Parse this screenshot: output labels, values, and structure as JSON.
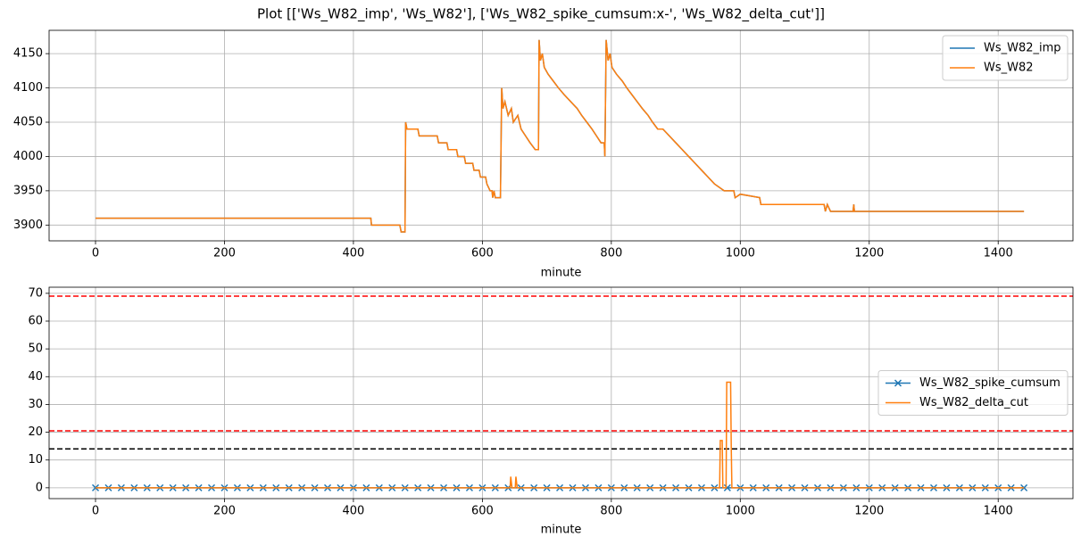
{
  "title": "Plot [['Ws_W82_imp', 'Ws_W82'], ['Ws_W82_spike_cumsum:x-', 'Ws_W82_delta_cut']]",
  "chart_data": [
    {
      "type": "line",
      "xlabel": "minute",
      "grid": true,
      "legend": "upper right",
      "xlim": [
        -72,
        1516
      ],
      "ylim": [
        3877,
        4184
      ],
      "xticks": [
        0,
        200,
        400,
        600,
        800,
        1000,
        1200,
        1400
      ],
      "yticks": [
        3900,
        3950,
        4000,
        4050,
        4100,
        4150
      ],
      "x": [
        0,
        427,
        428,
        472,
        474,
        480,
        481,
        483,
        500,
        502,
        530,
        532,
        545,
        547,
        560,
        562,
        572,
        574,
        585,
        587,
        595,
        597,
        605,
        607,
        612,
        615,
        616,
        618,
        620,
        628,
        630,
        632,
        635,
        640,
        645,
        648,
        655,
        660,
        667,
        674,
        682,
        687,
        688,
        690,
        693,
        696,
        702,
        710,
        718,
        727,
        737,
        747,
        754,
        762,
        770,
        777,
        784,
        789,
        790,
        792,
        795,
        798,
        801,
        808,
        817,
        824,
        832,
        840,
        848,
        857,
        864,
        872,
        880,
        890,
        900,
        910,
        920,
        930,
        940,
        950,
        960,
        975,
        990,
        992,
        1000,
        1030,
        1032,
        1130,
        1132,
        1135,
        1140,
        1175,
        1176,
        1177,
        1440
      ],
      "series": [
        {
          "name": "Ws_W82_imp",
          "color": "#1f77b4",
          "values": [
            3910,
            3910,
            3900,
            3900,
            3890,
            3890,
            4050,
            4040,
            4040,
            4030,
            4030,
            4020,
            4020,
            4010,
            4010,
            4000,
            4000,
            3990,
            3990,
            3980,
            3980,
            3970,
            3970,
            3960,
            3950,
            3950,
            3940,
            3950,
            3940,
            3940,
            4100,
            4070,
            4080,
            4060,
            4070,
            4050,
            4060,
            4040,
            4030,
            4020,
            4010,
            4010,
            4170,
            4140,
            4150,
            4130,
            4120,
            4110,
            4100,
            4090,
            4080,
            4070,
            4060,
            4050,
            4040,
            4030,
            4020,
            4020,
            4000,
            4170,
            4140,
            4150,
            4130,
            4120,
            4110,
            4100,
            4090,
            4080,
            4070,
            4060,
            4050,
            4040,
            4040,
            4030,
            4020,
            4010,
            4000,
            3990,
            3980,
            3970,
            3960,
            3950,
            3950,
            3940,
            3945,
            3940,
            3930,
            3930,
            3920,
            3930,
            3920,
            3920,
            3930,
            3920,
            3920
          ]
        },
        {
          "name": "Ws_W82",
          "color": "#ff7f0e",
          "values": [
            3910,
            3910,
            3900,
            3900,
            3890,
            3890,
            4050,
            4040,
            4040,
            4030,
            4030,
            4020,
            4020,
            4010,
            4010,
            4000,
            4000,
            3990,
            3990,
            3980,
            3980,
            3970,
            3970,
            3960,
            3950,
            3950,
            3940,
            3950,
            3940,
            3940,
            4100,
            4070,
            4080,
            4060,
            4070,
            4050,
            4060,
            4040,
            4030,
            4020,
            4010,
            4010,
            4170,
            4140,
            4150,
            4130,
            4120,
            4110,
            4100,
            4090,
            4080,
            4070,
            4060,
            4050,
            4040,
            4030,
            4020,
            4020,
            4000,
            4170,
            4140,
            4150,
            4130,
            4120,
            4110,
            4100,
            4090,
            4080,
            4070,
            4060,
            4050,
            4040,
            4040,
            4030,
            4020,
            4010,
            4000,
            3990,
            3980,
            3970,
            3960,
            3950,
            3950,
            3940,
            3945,
            3940,
            3930,
            3930,
            3920,
            3930,
            3920,
            3920,
            3930,
            3920,
            3920
          ]
        }
      ]
    },
    {
      "type": "line",
      "xlabel": "minute",
      "grid": true,
      "legend": "center right",
      "xlim": [
        -72,
        1516
      ],
      "ylim": [
        -3.9,
        72.2
      ],
      "xticks": [
        0,
        200,
        400,
        600,
        800,
        1000,
        1200,
        1400
      ],
      "yticks": [
        0,
        10,
        20,
        30,
        40,
        50,
        60,
        70
      ],
      "hlines": [
        {
          "value": 69,
          "color": "#ff0000"
        },
        {
          "value": 20.5,
          "color": "#ff0000"
        },
        {
          "value": 14,
          "color": "#000000"
        }
      ],
      "series": [
        {
          "name": "Ws_W82_spike_cumsum",
          "color": "#1f77b4",
          "marker": "x",
          "x": [
            0,
            20,
            40,
            60,
            80,
            100,
            120,
            140,
            160,
            180,
            200,
            220,
            240,
            260,
            280,
            300,
            320,
            340,
            360,
            380,
            400,
            420,
            440,
            460,
            480,
            500,
            520,
            540,
            560,
            580,
            600,
            620,
            640,
            660,
            680,
            700,
            720,
            740,
            760,
            780,
            800,
            820,
            840,
            860,
            880,
            900,
            920,
            940,
            960,
            980,
            1000,
            1020,
            1040,
            1060,
            1080,
            1100,
            1120,
            1140,
            1160,
            1180,
            1200,
            1220,
            1240,
            1260,
            1280,
            1300,
            1320,
            1340,
            1360,
            1380,
            1400,
            1420,
            1440
          ],
          "values": [
            0,
            0,
            0,
            0,
            0,
            0,
            0,
            0,
            0,
            0,
            0,
            0,
            0,
            0,
            0,
            0,
            0,
            0,
            0,
            0,
            0,
            0,
            0,
            0,
            0,
            0,
            0,
            0,
            0,
            0,
            0,
            0,
            0,
            0,
            0,
            0,
            0,
            0,
            0,
            0,
            0,
            0,
            0,
            0,
            0,
            0,
            0,
            0,
            0,
            0,
            0,
            0,
            0,
            0,
            0,
            0,
            0,
            0,
            0,
            0,
            0,
            0,
            0,
            0,
            0,
            0,
            0,
            0,
            0,
            0,
            0,
            0,
            0
          ]
        },
        {
          "name": "Ws_W82_delta_cut",
          "color": "#ff7f0e",
          "x": [
            0,
            643,
            644,
            646,
            651,
            652,
            654,
            968,
            969,
            972,
            973,
            978,
            979,
            985,
            986,
            987,
            1440
          ],
          "values": [
            0,
            0,
            4,
            0,
            0,
            4,
            0,
            0,
            17,
            17,
            0,
            0,
            38,
            38,
            15,
            0,
            0
          ]
        }
      ]
    }
  ]
}
